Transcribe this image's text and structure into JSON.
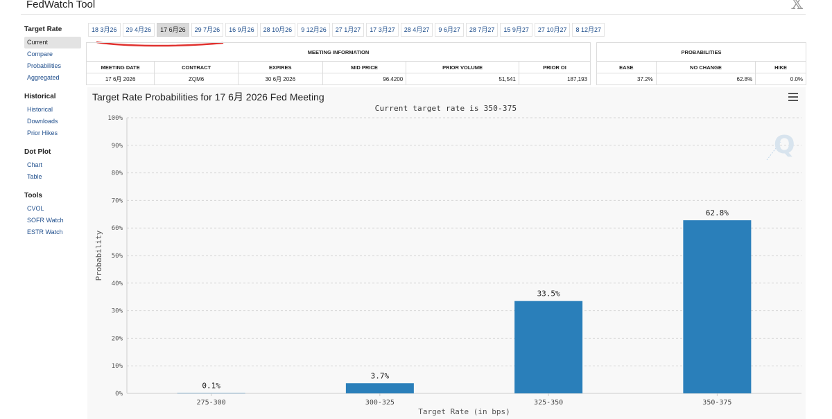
{
  "app": {
    "title": "FedWatch Tool",
    "close_label": "𝕏"
  },
  "sidebar": {
    "sections": [
      {
        "title": "Target Rate",
        "items": [
          {
            "label": "Current",
            "active": true
          },
          {
            "label": "Compare"
          },
          {
            "label": "Probabilities"
          },
          {
            "label": "Aggregated"
          }
        ]
      },
      {
        "title": "Historical",
        "items": [
          {
            "label": "Historical"
          },
          {
            "label": "Downloads"
          },
          {
            "label": "Prior Hikes"
          }
        ]
      },
      {
        "title": "Dot Plot",
        "items": [
          {
            "label": "Chart"
          },
          {
            "label": "Table"
          }
        ]
      },
      {
        "title": "Tools",
        "items": [
          {
            "label": "CVOL"
          },
          {
            "label": "SOFR Watch"
          },
          {
            "label": "ESTR Watch"
          }
        ]
      }
    ]
  },
  "meeting_tabs": [
    {
      "label": "18 3月26"
    },
    {
      "label": "29 4月26"
    },
    {
      "label": "17 6月26",
      "active": true
    },
    {
      "label": "29 7月26"
    },
    {
      "label": "16 9月26"
    },
    {
      "label": "28 10月26"
    },
    {
      "label": "9 12月26"
    },
    {
      "label": "27 1月27"
    },
    {
      "label": "17 3月27"
    },
    {
      "label": "28 4月27"
    },
    {
      "label": "9 6月27"
    },
    {
      "label": "28 7月27"
    },
    {
      "label": "15 9月27"
    },
    {
      "label": "27 10月27"
    },
    {
      "label": "8 12月27"
    }
  ],
  "meeting_info": {
    "section_title": "MEETING INFORMATION",
    "headers": [
      "MEETING DATE",
      "CONTRACT",
      "EXPIRES",
      "MID PRICE",
      "PRIOR VOLUME",
      "PRIOR OI"
    ],
    "values": [
      "17 6月 2026",
      "ZQM6",
      "30 6月 2026",
      "96.4200",
      "51,541",
      "187,193"
    ]
  },
  "probabilities": {
    "section_title": "PROBABILITIES",
    "headers": [
      "EASE",
      "NO CHANGE",
      "HIKE"
    ],
    "values": [
      "37.2%",
      "62.8%",
      "0.0%"
    ]
  },
  "colors": {
    "bar": "#2a7fba",
    "underline": "#e0322f"
  },
  "chart_data": {
    "type": "bar",
    "title": "Target Rate Probabilities for 17 6月 2026 Fed Meeting",
    "subtitle": "Current target rate is 350-375",
    "xlabel": "Target Rate (in bps)",
    "ylabel": "Probability",
    "categories": [
      "275-300",
      "300-325",
      "325-350",
      "350-375"
    ],
    "values": [
      0.1,
      3.7,
      33.5,
      62.8
    ],
    "value_labels": [
      "0.1%",
      "3.7%",
      "33.5%",
      "62.8%"
    ],
    "ylim": [
      0,
      100
    ],
    "yticks": [
      "0%",
      "10%",
      "20%",
      "30%",
      "40%",
      "50%",
      "60%",
      "70%",
      "80%",
      "90%",
      "100%"
    ],
    "grid": true,
    "legend": "none"
  }
}
